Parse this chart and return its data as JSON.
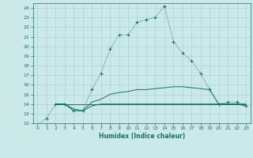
{
  "xlabel": "Humidex (Indice chaleur)",
  "background_color": "#cce9e9",
  "grid_color": "#aad4d4",
  "line_color": "#1a6e6e",
  "xlim": [
    -0.5,
    23.5
  ],
  "ylim": [
    12,
    24.5
  ],
  "xticks": [
    0,
    1,
    2,
    3,
    4,
    5,
    6,
    7,
    8,
    9,
    10,
    11,
    12,
    13,
    14,
    15,
    16,
    17,
    18,
    19,
    20,
    21,
    22,
    23
  ],
  "yticks": [
    12,
    13,
    14,
    15,
    16,
    17,
    18,
    19,
    20,
    21,
    22,
    23,
    24
  ],
  "series": [
    {
      "x": [
        0,
        1,
        2,
        3,
        4,
        5,
        6,
        7,
        8,
        9,
        10,
        11,
        12,
        13,
        14,
        15,
        16,
        17,
        18,
        19,
        20,
        21,
        22,
        23
      ],
      "y": [
        11.85,
        12.5,
        14.0,
        14.0,
        13.3,
        13.3,
        15.5,
        17.2,
        19.7,
        21.2,
        21.2,
        22.5,
        22.8,
        23.0,
        24.2,
        20.5,
        19.3,
        18.5,
        17.2,
        15.5,
        14.0,
        14.2,
        14.2,
        13.8
      ],
      "linestyle": "dotted",
      "marker": "+"
    },
    {
      "x": [
        2,
        3,
        4,
        5,
        6,
        7,
        8,
        9,
        10,
        11,
        12,
        13,
        14,
        15,
        16,
        17,
        18,
        19,
        20,
        21,
        22,
        23
      ],
      "y": [
        14.0,
        14.0,
        13.3,
        13.3,
        14.2,
        14.5,
        15.0,
        15.2,
        15.3,
        15.5,
        15.5,
        15.6,
        15.7,
        15.8,
        15.8,
        15.7,
        15.6,
        15.5,
        14.0,
        14.0,
        14.0,
        14.0
      ],
      "linestyle": "-",
      "marker": null
    },
    {
      "x": [
        2,
        3,
        4,
        5,
        6,
        7,
        8,
        9,
        10,
        11,
        12,
        13,
        14,
        15,
        16,
        17,
        18,
        19,
        20,
        21,
        22,
        23
      ],
      "y": [
        14.0,
        14.0,
        14.0,
        14.0,
        14.0,
        14.0,
        14.0,
        14.0,
        14.0,
        14.0,
        14.0,
        14.0,
        14.0,
        14.0,
        14.0,
        14.0,
        14.0,
        14.0,
        14.0,
        14.0,
        14.0,
        14.0
      ],
      "linestyle": "-",
      "marker": null
    },
    {
      "x": [
        2,
        3,
        4,
        5,
        6,
        7,
        8,
        9,
        10,
        11,
        12,
        13,
        14,
        15,
        16,
        17,
        18,
        19,
        20,
        21,
        22,
        23
      ],
      "y": [
        14.0,
        14.0,
        13.5,
        13.3,
        13.8,
        14.0,
        14.0,
        14.0,
        14.0,
        14.0,
        14.0,
        14.0,
        14.0,
        14.0,
        14.0,
        14.0,
        14.0,
        14.0,
        14.0,
        14.0,
        14.0,
        13.8
      ],
      "linestyle": "-",
      "marker": null
    }
  ]
}
